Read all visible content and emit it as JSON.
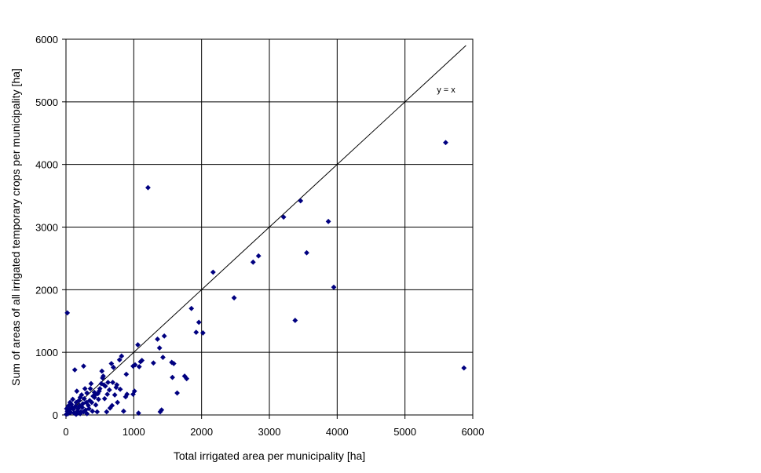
{
  "chart_data": {
    "type": "scatter",
    "title": "",
    "xlabel": "Total irrigated area per municipality [ha]",
    "ylabel": "Sum of areas of all irrigated temporary crops per municipality [ha]",
    "xlim": [
      0,
      6000
    ],
    "ylim": [
      0,
      6000
    ],
    "x_ticks": [
      "0",
      "1000",
      "2000",
      "3000",
      "4000",
      "5000",
      "6000"
    ],
    "y_ticks": [
      "0",
      "1000",
      "2000",
      "3000",
      "4000",
      "5000",
      "6000"
    ],
    "grid": true,
    "legend": "none",
    "marker": "diamond",
    "marker_color": "#000080",
    "line_color": "#000000",
    "reference_line": {
      "label": "y = x",
      "x": [
        0,
        5900
      ],
      "y": [
        0,
        5900
      ]
    },
    "series": [
      {
        "points": [
          [
            5600,
            4350
          ],
          [
            5870,
            750
          ],
          [
            3950,
            2040
          ],
          [
            3870,
            3090
          ],
          [
            3550,
            2590
          ],
          [
            3460,
            3420
          ],
          [
            3380,
            1510
          ],
          [
            3210,
            3160
          ],
          [
            2840,
            2540
          ],
          [
            2760,
            2440
          ],
          [
            2480,
            1870
          ],
          [
            2170,
            2280
          ],
          [
            2020,
            1310
          ],
          [
            1960,
            1480
          ],
          [
            1920,
            1320
          ],
          [
            1850,
            1700
          ],
          [
            1780,
            580
          ],
          [
            1750,
            620
          ],
          [
            1640,
            350
          ],
          [
            1590,
            820
          ],
          [
            1560,
            840
          ],
          [
            1570,
            600
          ],
          [
            1450,
            1260
          ],
          [
            1430,
            920
          ],
          [
            1410,
            80
          ],
          [
            1390,
            50
          ],
          [
            1380,
            1070
          ],
          [
            1350,
            1210
          ],
          [
            1290,
            830
          ],
          [
            1210,
            3630
          ],
          [
            1120,
            870
          ],
          [
            1100,
            850
          ],
          [
            1060,
            1120
          ],
          [
            1080,
            770
          ],
          [
            1070,
            30
          ],
          [
            1020,
            800
          ],
          [
            990,
            780
          ],
          [
            1010,
            380
          ],
          [
            990,
            330
          ],
          [
            900,
            330
          ],
          [
            890,
            650
          ],
          [
            880,
            290
          ],
          [
            850,
            60
          ],
          [
            820,
            940
          ],
          [
            800,
            410
          ],
          [
            790,
            880
          ],
          [
            760,
            200
          ],
          [
            750,
            480
          ],
          [
            740,
            440
          ],
          [
            720,
            320
          ],
          [
            700,
            760
          ],
          [
            680,
            150
          ],
          [
            670,
            820
          ],
          [
            650,
            110
          ],
          [
            640,
            400
          ],
          [
            620,
            520
          ],
          [
            600,
            50
          ],
          [
            580,
            460
          ],
          [
            570,
            260
          ],
          [
            550,
            620
          ],
          [
            540,
            590
          ],
          [
            530,
            700
          ],
          [
            520,
            500
          ],
          [
            500,
            420
          ],
          [
            490,
            380
          ],
          [
            470,
            340
          ],
          [
            460,
            50
          ],
          [
            440,
            330
          ],
          [
            420,
            280
          ],
          [
            400,
            300
          ],
          [
            390,
            60
          ],
          [
            370,
            500
          ],
          [
            360,
            420
          ],
          [
            350,
            230
          ],
          [
            340,
            100
          ],
          [
            330,
            150
          ],
          [
            310,
            350
          ],
          [
            300,
            200
          ],
          [
            290,
            80
          ],
          [
            280,
            420
          ],
          [
            270,
            260
          ],
          [
            260,
            780
          ],
          [
            250,
            180
          ],
          [
            240,
            120
          ],
          [
            230,
            320
          ],
          [
            220,
            50
          ],
          [
            210,
            280
          ],
          [
            200,
            150
          ],
          [
            190,
            230
          ],
          [
            180,
            100
          ],
          [
            170,
            60
          ],
          [
            160,
            380
          ],
          [
            150,
            200
          ],
          [
            140,
            140
          ],
          [
            130,
            720
          ],
          [
            120,
            30
          ],
          [
            110,
            90
          ],
          [
            100,
            250
          ],
          [
            90,
            120
          ],
          [
            80,
            170
          ],
          [
            70,
            40
          ],
          [
            60,
            200
          ],
          [
            50,
            90
          ],
          [
            40,
            150
          ],
          [
            30,
            20
          ],
          [
            20,
            60
          ],
          [
            10,
            100
          ],
          [
            5,
            10
          ],
          [
            20,
            1630
          ],
          [
            420,
            360
          ],
          [
            440,
            160
          ],
          [
            480,
            250
          ],
          [
            560,
            480
          ],
          [
            610,
            330
          ],
          [
            690,
            520
          ],
          [
            210,
            20
          ],
          [
            310,
            20
          ],
          [
            150,
            10
          ],
          [
            260,
            50
          ],
          [
            380,
            200
          ]
        ]
      }
    ]
  }
}
